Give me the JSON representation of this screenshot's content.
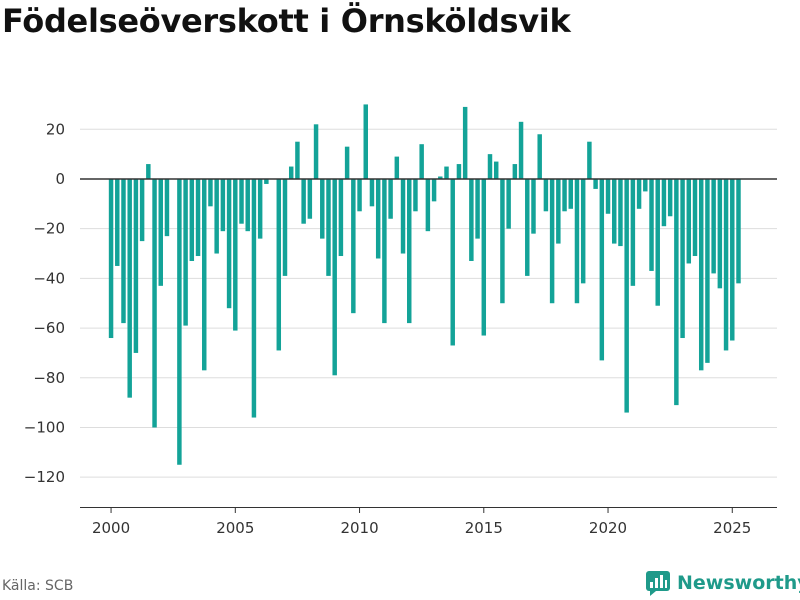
{
  "title": "Födelseöverskott i Örnsköldsvik",
  "source": "Källa: SCB",
  "brand": "Newsworthy",
  "colors": {
    "bar": "#13a398",
    "brand": "#1f9a8a",
    "grid": "#dddddd",
    "axis": "#333333"
  },
  "chart_data": {
    "type": "bar",
    "title": "Födelseöverskott i Örnsköldsvik",
    "xlabel": "",
    "ylabel": "",
    "ylim": [
      -132,
      35
    ],
    "xlim": [
      1998.75,
      2026.8
    ],
    "grid": true,
    "legend": "none",
    "y_ticks": [
      20,
      0,
      -20,
      -40,
      -60,
      -80,
      -100,
      -120
    ],
    "y_tick_labels": [
      "20",
      "0",
      "−20",
      "−40",
      "−60",
      "−80",
      "−100",
      "−120"
    ],
    "x_ticks": [
      2000,
      2005,
      2010,
      2015,
      2020,
      2025
    ],
    "x_tick_labels": [
      "2000",
      "2005",
      "2010",
      "2015",
      "2020",
      "2025"
    ],
    "start_year": 2000,
    "periods_per_year": 4,
    "values": [
      -64,
      -35,
      -58,
      -88,
      -70,
      -25,
      6,
      -100,
      -43,
      -23,
      0,
      -115,
      -59,
      -33,
      -31,
      -77,
      -11,
      -30,
      -21,
      -52,
      -61,
      -18,
      -21,
      -96,
      -24,
      -2,
      0,
      -69,
      -39,
      5,
      15,
      -18,
      -16,
      22,
      -24,
      -39,
      -79,
      -31,
      13,
      -54,
      -13,
      30,
      -11,
      -32,
      -58,
      -16,
      9,
      -30,
      -58,
      -13,
      14,
      -21,
      -9,
      1,
      5,
      -67,
      6,
      29,
      -33,
      -24,
      -63,
      10,
      7,
      -50,
      -20,
      6,
      23,
      -39,
      -22,
      18,
      -13,
      -50,
      -26,
      -13,
      -12,
      -50,
      -42,
      15,
      -4,
      -73,
      -14,
      -26,
      -27,
      -94,
      -43,
      -12,
      -5,
      -37,
      -51,
      -19,
      -15,
      -91,
      -64,
      -34,
      -31,
      -77,
      -74,
      -38,
      -44,
      -69,
      -65,
      -42
    ]
  }
}
